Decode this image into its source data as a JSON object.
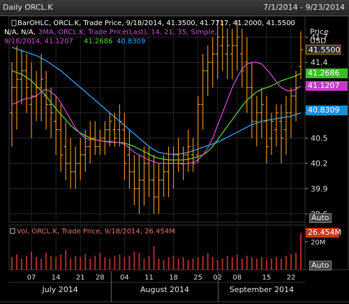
{
  "header": {
    "title": "Daily ORCL.K",
    "range": "7/1/2014 - 9/23/2014"
  },
  "price_panel": {
    "legend": [
      {
        "text": "BarOHLC, ORCL.K, Trade Price, 9/18/2014, 41.3500, 41.7717, 41.2000, 41.5500",
        "color": "#ffffff"
      },
      {
        "text": "N/A, N/A, ",
        "color": "#ffffff"
      },
      {
        "text": "3MA, ORCL.K, Trade Price(Last), 14, 21, 35, Simple,",
        "color": "#d04ad8"
      },
      {
        "text": "9/18/2014, 41.1207",
        "color": "#d04ad8"
      },
      {
        "text": "41.2686",
        "color": "#5ad83a"
      },
      {
        "text": "40.8309",
        "color": "#2aa8ff"
      }
    ],
    "axis_title": "Price",
    "axis_unit": "USD",
    "auto_label": "Auto",
    "tags": [
      {
        "label": "41.5500",
        "value": 41.55,
        "bg": "#2a2a2a",
        "fg": "#ffffff",
        "border": "#c98a1a"
      },
      {
        "label": "41.2686",
        "value": 41.2686,
        "bg": "#34c21d",
        "fg": "#ffffff"
      },
      {
        "label": "41.1207",
        "value": 41.1207,
        "bg": "#c23ac8",
        "fg": "#ffffff"
      },
      {
        "label": "40.8309",
        "value": 40.8309,
        "bg": "#1a8ed8",
        "fg": "#ffffff"
      }
    ]
  },
  "volume_panel": {
    "legend": "Vol, ORCL.K, Trade Price, 9/18/2014, 26.454M",
    "tag": "26.454M",
    "tick": "20M",
    "auto_label": "Auto"
  },
  "x_axis": {
    "day_labels": [
      "07",
      "14",
      "21",
      "28",
      "04",
      "11",
      "18",
      "25",
      "02",
      "08",
      "15",
      "22"
    ],
    "month_labels": [
      "July 2014",
      "August 2014",
      "September 2014"
    ]
  },
  "chart_data": {
    "type": "bar",
    "y_ticks": [
      39.6,
      39.9,
      40.2,
      40.5,
      40.8,
      41.1,
      41.4,
      41.7
    ],
    "ylim": [
      39.5,
      41.95
    ],
    "bars": [
      {
        "o": 40.8,
        "h": 41.4,
        "l": 40.4,
        "c": 41.1
      },
      {
        "o": 41.1,
        "h": 41.6,
        "l": 40.6,
        "c": 41.2
      },
      {
        "o": 41.2,
        "h": 41.55,
        "l": 40.9,
        "c": 41.3
      },
      {
        "o": 41.3,
        "h": 41.5,
        "l": 40.8,
        "c": 41.1
      },
      {
        "o": 40.9,
        "h": 41.4,
        "l": 40.5,
        "c": 41.0
      },
      {
        "o": 41.0,
        "h": 41.3,
        "l": 40.7,
        "c": 41.1
      },
      {
        "o": 41.1,
        "h": 41.5,
        "l": 40.7,
        "c": 41.2
      },
      {
        "o": 41.0,
        "h": 41.3,
        "l": 40.6,
        "c": 40.9
      },
      {
        "o": 40.9,
        "h": 41.1,
        "l": 40.5,
        "c": 40.8
      },
      {
        "o": 40.7,
        "h": 41.0,
        "l": 40.3,
        "c": 40.6
      },
      {
        "o": 40.6,
        "h": 40.9,
        "l": 40.1,
        "c": 40.3
      },
      {
        "o": 40.4,
        "h": 40.7,
        "l": 40.0,
        "c": 40.2
      },
      {
        "o": 40.2,
        "h": 40.5,
        "l": 39.9,
        "c": 40.1
      },
      {
        "o": 40.1,
        "h": 40.4,
        "l": 39.9,
        "c": 40.2
      },
      {
        "o": 40.2,
        "h": 40.5,
        "l": 40.0,
        "c": 40.3
      },
      {
        "o": 40.3,
        "h": 40.6,
        "l": 40.1,
        "c": 40.4
      },
      {
        "o": 40.4,
        "h": 40.7,
        "l": 40.2,
        "c": 40.5
      },
      {
        "o": 40.5,
        "h": 40.7,
        "l": 40.3,
        "c": 40.4
      },
      {
        "o": 40.4,
        "h": 40.6,
        "l": 40.3,
        "c": 40.5
      },
      {
        "o": 40.5,
        "h": 40.7,
        "l": 40.3,
        "c": 40.6
      },
      {
        "o": 40.6,
        "h": 40.8,
        "l": 40.4,
        "c": 40.7
      },
      {
        "o": 40.6,
        "h": 40.8,
        "l": 40.4,
        "c": 40.5
      },
      {
        "o": 40.6,
        "h": 40.9,
        "l": 40.4,
        "c": 40.7
      },
      {
        "o": 40.6,
        "h": 40.8,
        "l": 40.0,
        "c": 40.2
      },
      {
        "o": 40.3,
        "h": 40.6,
        "l": 39.9,
        "c": 40.1
      },
      {
        "o": 40.1,
        "h": 40.3,
        "l": 39.7,
        "c": 39.9
      },
      {
        "o": 39.9,
        "h": 40.3,
        "l": 39.6,
        "c": 40.0
      },
      {
        "o": 40.0,
        "h": 40.4,
        "l": 39.7,
        "c": 40.2
      },
      {
        "o": 40.2,
        "h": 40.4,
        "l": 39.8,
        "c": 40.0
      },
      {
        "o": 40.0,
        "h": 40.3,
        "l": 39.6,
        "c": 39.8
      },
      {
        "o": 39.8,
        "h": 40.2,
        "l": 39.6,
        "c": 40.0
      },
      {
        "o": 40.0,
        "h": 40.3,
        "l": 39.8,
        "c": 40.1
      },
      {
        "o": 40.1,
        "h": 40.4,
        "l": 39.8,
        "c": 40.2
      },
      {
        "o": 40.2,
        "h": 40.4,
        "l": 39.9,
        "c": 40.3
      },
      {
        "o": 40.3,
        "h": 40.5,
        "l": 40.1,
        "c": 40.2
      },
      {
        "o": 40.2,
        "h": 40.4,
        "l": 40.0,
        "c": 40.3
      },
      {
        "o": 40.3,
        "h": 40.6,
        "l": 40.1,
        "c": 40.4
      },
      {
        "o": 40.3,
        "h": 40.5,
        "l": 40.1,
        "c": 40.2
      },
      {
        "o": 40.3,
        "h": 41.0,
        "l": 40.2,
        "c": 40.9
      },
      {
        "o": 40.9,
        "h": 41.5,
        "l": 40.6,
        "c": 41.3
      },
      {
        "o": 41.3,
        "h": 41.6,
        "l": 41.0,
        "c": 41.4
      },
      {
        "o": 41.4,
        "h": 41.7,
        "l": 41.1,
        "c": 41.5
      },
      {
        "o": 41.5,
        "h": 41.9,
        "l": 41.2,
        "c": 41.7
      },
      {
        "o": 41.6,
        "h": 41.9,
        "l": 41.3,
        "c": 41.7
      },
      {
        "o": 41.5,
        "h": 41.8,
        "l": 41.2,
        "c": 41.6
      },
      {
        "o": 41.5,
        "h": 41.8,
        "l": 41.2,
        "c": 41.6
      },
      {
        "o": 41.6,
        "h": 41.9,
        "l": 41.3,
        "c": 41.7
      },
      {
        "o": 41.5,
        "h": 41.8,
        "l": 41.1,
        "c": 41.3
      },
      {
        "o": 41.4,
        "h": 41.7,
        "l": 40.8,
        "c": 41.1
      },
      {
        "o": 41.1,
        "h": 41.4,
        "l": 40.5,
        "c": 40.7
      },
      {
        "o": 40.7,
        "h": 41.0,
        "l": 40.4,
        "c": 40.8
      },
      {
        "o": 40.8,
        "h": 41.1,
        "l": 40.5,
        "c": 40.9
      },
      {
        "o": 40.7,
        "h": 41.0,
        "l": 40.2,
        "c": 40.4
      },
      {
        "o": 40.5,
        "h": 40.8,
        "l": 40.3,
        "c": 40.7
      },
      {
        "o": 40.6,
        "h": 40.9,
        "l": 40.4,
        "c": 40.8
      },
      {
        "o": 40.7,
        "h": 40.9,
        "l": 40.2,
        "c": 40.5
      },
      {
        "o": 40.6,
        "h": 41.0,
        "l": 40.3,
        "c": 40.8
      },
      {
        "o": 40.8,
        "h": 41.1,
        "l": 40.5,
        "c": 41.0
      },
      {
        "o": 41.0,
        "h": 41.3,
        "l": 40.7,
        "c": 41.1
      },
      {
        "o": 41.35,
        "h": 41.77,
        "l": 41.2,
        "c": 41.55
      }
    ],
    "ma14": [
      40.9,
      40.92,
      40.95,
      40.97,
      40.98,
      41.0,
      41.05,
      41.08,
      41.05,
      41.0,
      40.92,
      40.82,
      40.72,
      40.62,
      40.55,
      40.5,
      40.48,
      40.48,
      40.47,
      40.46,
      40.45,
      40.45,
      40.45,
      40.42,
      40.38,
      40.33,
      40.3,
      40.27,
      40.24,
      40.22,
      40.2,
      40.2,
      40.2,
      40.2,
      40.2,
      40.19,
      40.2,
      40.21,
      40.24,
      40.3,
      40.38,
      40.5,
      40.65,
      40.8,
      40.95,
      41.1,
      41.22,
      41.32,
      41.38,
      41.4,
      41.4,
      41.38,
      41.32,
      41.25,
      41.17,
      41.1,
      41.07,
      41.06,
      41.08,
      41.12
    ],
    "ma21": [
      41.3,
      41.28,
      41.26,
      41.22,
      41.18,
      41.12,
      41.06,
      41.0,
      40.92,
      40.85,
      40.78,
      40.72,
      40.65,
      40.6,
      40.56,
      40.53,
      40.5,
      40.48,
      40.47,
      40.46,
      40.46,
      40.45,
      40.45,
      40.44,
      40.42,
      40.4,
      40.37,
      40.34,
      40.31,
      40.28,
      40.26,
      40.25,
      40.24,
      40.24,
      40.24,
      40.24,
      40.25,
      40.26,
      40.28,
      40.3,
      40.34,
      40.4,
      40.48,
      40.56,
      40.64,
      40.72,
      40.8,
      40.88,
      40.95,
      41.0,
      41.05,
      41.08,
      41.1,
      41.12,
      41.15,
      41.18,
      41.2,
      41.22,
      41.24,
      41.27
    ],
    "ma35": [
      41.58,
      41.56,
      41.54,
      41.52,
      41.5,
      41.48,
      41.45,
      41.42,
      41.38,
      41.34,
      41.3,
      41.25,
      41.2,
      41.15,
      41.1,
      41.05,
      41.0,
      40.95,
      40.9,
      40.85,
      40.8,
      40.75,
      40.7,
      40.65,
      40.6,
      40.55,
      40.5,
      40.45,
      40.4,
      40.36,
      40.33,
      40.32,
      40.31,
      40.31,
      40.31,
      40.32,
      40.33,
      40.35,
      40.37,
      40.39,
      40.41,
      40.43,
      40.45,
      40.48,
      40.51,
      40.54,
      40.57,
      40.6,
      40.63,
      40.66,
      40.68,
      40.7,
      40.71,
      40.72,
      40.73,
      40.74,
      40.75,
      40.76,
      40.78,
      40.8
    ],
    "volume": [
      9,
      11,
      8,
      10,
      13,
      9,
      8,
      12,
      10,
      9,
      11,
      14,
      8,
      10,
      9,
      11,
      8,
      10,
      12,
      9,
      8,
      10,
      11,
      9,
      10,
      13,
      12,
      8,
      10,
      17,
      8,
      7,
      9,
      10,
      8,
      9,
      7,
      8,
      9,
      10,
      12,
      9,
      7,
      8,
      10,
      9,
      11,
      8,
      10,
      9,
      8,
      9,
      7,
      8,
      9,
      8,
      10,
      11,
      12,
      26
    ],
    "vol_max": 30
  }
}
